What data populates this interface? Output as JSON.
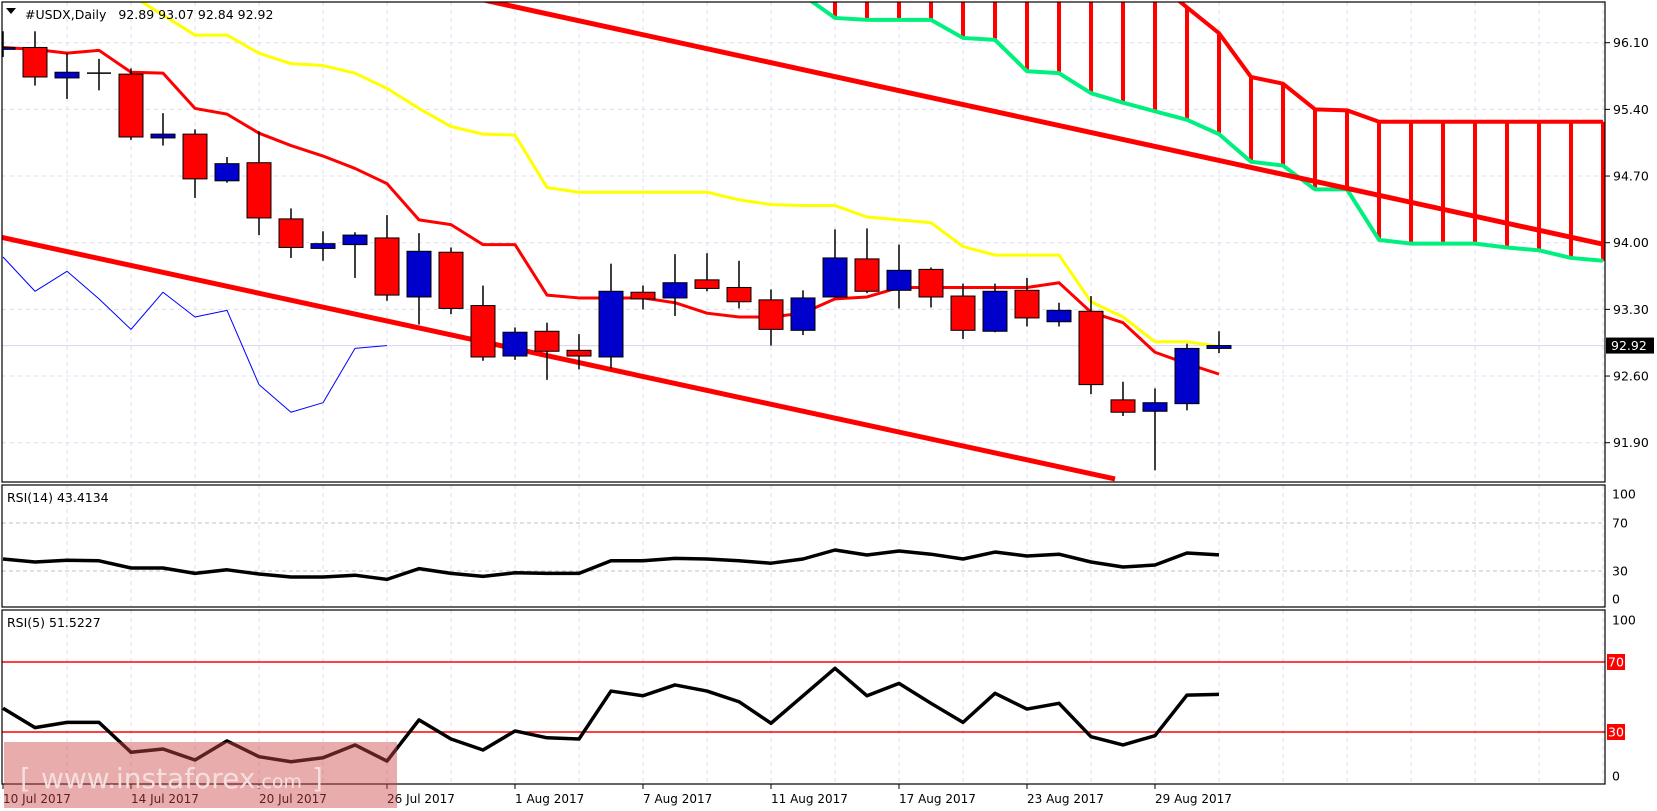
{
  "header": {
    "symbol_label": "#USDX,Daily",
    "ohlc": "92.89 93.07 92.84 92.92"
  },
  "price_axis": {
    "ticks": [
      "96.10",
      "95.40",
      "94.70",
      "94.00",
      "93.30",
      "92.60",
      "91.90"
    ],
    "current_price": "92.92"
  },
  "rsi14": {
    "label": "RSI(14) 43.4134",
    "ticks": [
      "100",
      "70",
      "30",
      "0"
    ],
    "grid_levels": [
      70,
      30
    ]
  },
  "rsi5": {
    "label": "RSI(5) 51.5227",
    "ticks": [
      "100",
      "70",
      "30",
      "0"
    ],
    "highlight_levels": [
      70,
      30
    ]
  },
  "date_labels": [
    {
      "text": "10 Jul 2017",
      "index": 0
    },
    {
      "text": "14 Jul 2017",
      "index": 4
    },
    {
      "text": "20 Jul 2017",
      "index": 8
    },
    {
      "text": "26 Jul 2017",
      "index": 12
    },
    {
      "text": "1 Aug 2017",
      "index": 16
    },
    {
      "text": "7 Aug 2017",
      "index": 20
    },
    {
      "text": "11 Aug 2017",
      "index": 24
    },
    {
      "text": "17 Aug 2017",
      "index": 28
    },
    {
      "text": "23 Aug 2017",
      "index": 32
    },
    {
      "text": "29 Aug 2017",
      "index": 36
    }
  ],
  "watermark": {
    "open": "[",
    "domain": "www.instaforex",
    "tld": ".com",
    "close": "]"
  },
  "colors": {
    "bull": "#0000cc",
    "bear": "#ff0000",
    "tenkan": "#ff0000",
    "kijun": "#ffff00",
    "span_b": "#00f080",
    "cloud_hatch": "#ff0000",
    "trendline": "#ff0000",
    "chikou": "#0000ff",
    "rsi": "#000000",
    "rsi_levels": "#ff0000",
    "grid": "#dcdcf0"
  },
  "chart_data": [
    {
      "type": "candlestick",
      "symbol": "#USDX",
      "timeframe": "Daily",
      "ylim": [
        91.55,
        96.55
      ],
      "grid": true,
      "ohlc": [
        [
          96.03,
          96.22,
          95.95,
          96.05
        ],
        [
          96.05,
          96.22,
          95.65,
          95.74
        ],
        [
          95.73,
          95.99,
          95.51,
          95.79
        ],
        [
          95.78,
          95.93,
          95.6,
          95.78
        ],
        [
          95.77,
          95.83,
          95.08,
          95.11
        ],
        [
          95.1,
          95.36,
          95.02,
          95.14
        ],
        [
          95.14,
          95.19,
          94.47,
          94.67
        ],
        [
          94.65,
          94.9,
          94.63,
          94.83
        ],
        [
          94.84,
          95.17,
          94.08,
          94.26
        ],
        [
          94.25,
          94.36,
          93.84,
          93.95
        ],
        [
          93.94,
          94.12,
          93.81,
          93.99
        ],
        [
          93.98,
          94.11,
          93.63,
          94.08
        ],
        [
          94.05,
          94.29,
          93.39,
          93.45
        ],
        [
          93.43,
          94.1,
          93.14,
          93.91
        ],
        [
          93.9,
          93.95,
          93.25,
          93.31
        ],
        [
          93.34,
          93.55,
          92.76,
          92.8
        ],
        [
          92.81,
          93.11,
          92.77,
          93.06
        ],
        [
          93.07,
          93.16,
          92.56,
          92.86
        ],
        [
          92.87,
          93.04,
          92.67,
          92.81
        ],
        [
          92.8,
          93.78,
          92.68,
          93.49
        ],
        [
          93.48,
          93.55,
          93.3,
          93.41
        ],
        [
          93.42,
          93.88,
          93.23,
          93.58
        ],
        [
          93.61,
          93.89,
          93.49,
          93.52
        ],
        [
          93.53,
          93.81,
          93.31,
          93.38
        ],
        [
          93.4,
          93.51,
          92.92,
          93.09
        ],
        [
          93.08,
          93.5,
          93.03,
          93.42
        ],
        [
          93.43,
          94.14,
          93.43,
          93.84
        ],
        [
          93.83,
          94.15,
          93.47,
          93.49
        ],
        [
          93.5,
          93.98,
          93.31,
          93.71
        ],
        [
          93.72,
          93.74,
          93.32,
          93.43
        ],
        [
          93.44,
          93.57,
          92.99,
          93.08
        ],
        [
          93.07,
          93.57,
          93.06,
          93.49
        ],
        [
          93.5,
          93.63,
          93.12,
          93.21
        ],
        [
          93.17,
          93.37,
          93.12,
          93.29
        ],
        [
          93.28,
          93.44,
          92.41,
          92.51
        ],
        [
          92.35,
          92.54,
          92.18,
          92.22
        ],
        [
          92.23,
          92.47,
          91.61,
          92.32
        ],
        [
          92.31,
          92.94,
          92.24,
          92.89
        ],
        [
          92.89,
          93.07,
          92.84,
          92.92
        ]
      ],
      "tenkan": [
        96.05,
        96.03,
        95.99,
        96.02,
        95.79,
        95.78,
        95.41,
        95.35,
        95.15,
        95.02,
        94.91,
        94.78,
        94.62,
        94.24,
        94.19,
        93.98,
        93.98,
        93.45,
        93.42,
        93.42,
        93.42,
        93.37,
        93.26,
        93.22,
        93.22,
        93.26,
        93.41,
        93.43,
        93.53,
        93.53,
        93.53,
        93.53,
        93.53,
        93.58,
        93.27,
        93.16,
        92.85,
        92.73,
        92.62
      ],
      "kijun": [
        96.85,
        96.8,
        96.75,
        96.7,
        96.6,
        96.39,
        96.18,
        96.18,
        95.99,
        95.88,
        95.86,
        95.78,
        95.62,
        95.41,
        95.22,
        95.14,
        95.13,
        94.58,
        94.53,
        94.53,
        94.53,
        94.53,
        94.53,
        94.45,
        94.4,
        94.39,
        94.39,
        94.27,
        94.24,
        94.21,
        93.96,
        93.87,
        93.87,
        93.87,
        93.38,
        93.22,
        92.96,
        92.96,
        92.91
      ],
      "chikou": [
        93.85,
        93.49,
        93.7,
        93.41,
        93.09,
        93.48,
        93.22,
        93.29,
        92.51,
        92.22,
        92.32,
        92.89,
        92.92
      ],
      "span_a_start": 26,
      "span_a": [
        96.95,
        96.95,
        96.95,
        96.95,
        96.95,
        96.95,
        96.95,
        96.95,
        96.95,
        96.95,
        96.75,
        96.47,
        96.2,
        95.74,
        95.67,
        95.4,
        95.39,
        95.27,
        95.27,
        95.27,
        95.27,
        95.27,
        95.27,
        95.27,
        95.27
      ],
      "span_b_start": 25,
      "span_b": [
        96.6,
        96.36,
        96.34,
        96.34,
        96.34,
        96.15,
        96.13,
        95.8,
        95.78,
        95.57,
        95.47,
        95.38,
        95.29,
        95.14,
        94.85,
        94.81,
        94.56,
        94.56,
        94.03,
        93.99,
        93.99,
        93.99,
        93.95,
        93.92,
        93.84,
        93.81
      ],
      "trendlines": [
        {
          "from": [
            15.0,
            96.55
          ],
          "to": [
            50.06,
            93.98
          ]
        },
        {
          "from": [
            -0.1,
            94.06
          ],
          "to": [
            34.75,
            91.52
          ]
        }
      ],
      "last_price": 92.92
    },
    {
      "type": "line",
      "name": "RSI(14)",
      "ylim": [
        0,
        100
      ],
      "values": [
        40,
        37.5,
        39,
        38.5,
        32.5,
        32.5,
        28,
        31,
        27.5,
        25,
        25,
        26.5,
        23,
        32,
        28,
        25.5,
        28.5,
        28,
        28,
        38.5,
        38.5,
        40.5,
        40,
        38.5,
        36.5,
        40,
        47.5,
        43.3,
        46.7,
        44,
        40,
        45.8,
        42.5,
        44,
        37.5,
        33.3,
        35,
        45,
        43.4
      ]
    },
    {
      "type": "line",
      "name": "RSI(5)",
      "ylim": [
        0,
        100
      ],
      "values": [
        43.6,
        32.5,
        35.5,
        35.5,
        18.4,
        20.3,
        14,
        24.9,
        15.9,
        13,
        15.3,
        22.6,
        13.4,
        36.9,
        26,
        19.7,
        30.6,
        26.7,
        26,
        53.4,
        50.7,
        56.9,
        53.4,
        47.3,
        35,
        50.7,
        66.4,
        50.7,
        57.8,
        46.4,
        35.5,
        52.1,
        43.1,
        46.4,
        27.3,
        22.6,
        27.9,
        51.1,
        51.5
      ]
    }
  ]
}
